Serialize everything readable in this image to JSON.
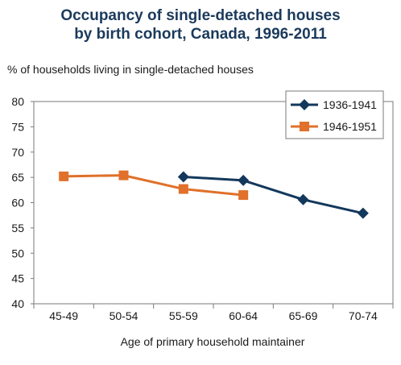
{
  "chart_data": {
    "type": "line",
    "title_lines": [
      "Occupancy of single-detached houses",
      "by birth cohort, Canada, 1996-2011"
    ],
    "ylabel": "% of households living in single-detached houses",
    "xlabel": "Age of primary household maintainer",
    "categories": [
      "45-49",
      "50-54",
      "55-59",
      "60-64",
      "65-69",
      "70-74"
    ],
    "ylim": [
      40,
      80
    ],
    "yticks": [
      40,
      45,
      50,
      55,
      60,
      65,
      70,
      75,
      80
    ],
    "legend_position": "top-right",
    "grid": false,
    "series": [
      {
        "name": "1936-1941",
        "color": "#13385c",
        "marker": "diamond",
        "values": [
          null,
          null,
          65.1,
          64.4,
          60.6,
          57.9
        ]
      },
      {
        "name": "1946-1951",
        "color": "#e0702a",
        "marker": "square",
        "values": [
          65.2,
          65.4,
          62.7,
          61.5,
          null,
          null
        ]
      }
    ]
  }
}
